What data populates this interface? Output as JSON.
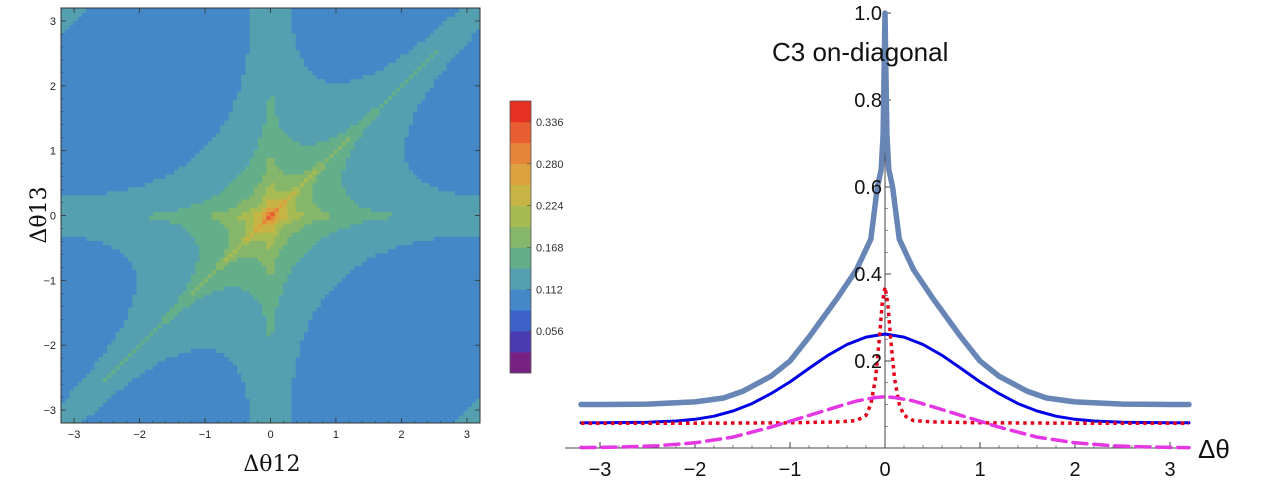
{
  "chart_data": [
    {
      "type": "heatmap",
      "xlabel": "Δθ12",
      "ylabel": "Δθ13",
      "xlim": [
        -3.2,
        3.2
      ],
      "ylim": [
        -3.2,
        3.2
      ],
      "xticks": [
        "-3",
        "-2",
        "-1",
        "0",
        "1",
        "2",
        "3"
      ],
      "yticks": [
        "-3",
        "-2",
        "-1",
        "0",
        "1",
        "2",
        "3"
      ],
      "colorbar": {
        "ticks": [
          "0.056",
          "0.112",
          "0.168",
          "0.224",
          "0.280",
          "0.336"
        ],
        "tick_values": [
          0.056,
          0.112,
          0.168,
          0.224,
          0.28,
          0.336
        ],
        "levels": [
          0.0,
          0.028,
          0.056,
          0.084,
          0.112,
          0.14,
          0.168,
          0.196,
          0.224,
          0.252,
          0.28,
          0.308,
          0.336,
          0.364
        ],
        "colors": [
          "#772183",
          "#4a3bb3",
          "#3d62cc",
          "#4588c8",
          "#54a0b0",
          "#64ae8a",
          "#86b66a",
          "#a8bb52",
          "#c8b445",
          "#dca23e",
          "#e6853a",
          "#e85e32",
          "#e63022"
        ]
      }
    },
    {
      "type": "line",
      "title": "C3 on-diagonal",
      "xlabel": "Δθ",
      "xlim": [
        -3.2,
        3.2
      ],
      "ylim": [
        0,
        1.0
      ],
      "xticks": [
        "−3",
        "−2",
        "−1",
        "0",
        "1",
        "2",
        "3"
      ],
      "yticks": [
        "0.2",
        "0.4",
        "0.6",
        "0.8",
        "1.0"
      ],
      "series": [
        {
          "color": "#6786b5",
          "style": "solid-thick",
          "x": [
            -3.2,
            -3.0,
            -2.5,
            -2.0,
            -1.7,
            -1.5,
            -1.2,
            -1.0,
            -0.8,
            -0.5,
            -0.3,
            -0.15,
            -0.08,
            -0.04,
            -0.02,
            0.0,
            0.02,
            0.04,
            0.08,
            0.15,
            0.3,
            0.5,
            0.8,
            1.0,
            1.2,
            1.5,
            1.7,
            2.0,
            2.5,
            3.0,
            3.2
          ],
          "y": [
            0.1,
            0.1,
            0.101,
            0.106,
            0.115,
            0.13,
            0.165,
            0.2,
            0.255,
            0.345,
            0.41,
            0.48,
            0.6,
            0.64,
            0.72,
            1.0,
            0.72,
            0.64,
            0.6,
            0.48,
            0.41,
            0.345,
            0.255,
            0.2,
            0.165,
            0.13,
            0.115,
            0.106,
            0.101,
            0.1,
            0.1
          ]
        },
        {
          "color": "#0000e8",
          "style": "solid",
          "x": [
            -3.2,
            -3.0,
            -2.5,
            -2.2,
            -2.0,
            -1.8,
            -1.6,
            -1.4,
            -1.2,
            -1.0,
            -0.8,
            -0.6,
            -0.4,
            -0.2,
            0.0,
            0.2,
            0.4,
            0.6,
            0.8,
            1.0,
            1.2,
            1.4,
            1.6,
            1.8,
            2.0,
            2.2,
            2.5,
            3.0,
            3.2
          ],
          "y": [
            0.058,
            0.058,
            0.059,
            0.062,
            0.066,
            0.073,
            0.085,
            0.102,
            0.125,
            0.152,
            0.183,
            0.213,
            0.238,
            0.255,
            0.262,
            0.255,
            0.238,
            0.213,
            0.183,
            0.152,
            0.125,
            0.102,
            0.085,
            0.073,
            0.066,
            0.062,
            0.059,
            0.058,
            0.058
          ]
        },
        {
          "color": "#e8001a",
          "style": "dotted",
          "x": [
            -3.2,
            -2.0,
            -1.0,
            -0.5,
            -0.3,
            -0.2,
            -0.15,
            -0.1,
            -0.06,
            -0.03,
            0.0,
            0.03,
            0.06,
            0.1,
            0.15,
            0.2,
            0.3,
            0.5,
            1.0,
            2.0,
            3.2
          ],
          "y": [
            0.057,
            0.057,
            0.058,
            0.06,
            0.063,
            0.075,
            0.1,
            0.16,
            0.25,
            0.33,
            0.37,
            0.33,
            0.25,
            0.16,
            0.1,
            0.075,
            0.063,
            0.06,
            0.058,
            0.057,
            0.057
          ]
        },
        {
          "color": "#e436e2",
          "style": "dashed",
          "x": [
            -3.2,
            -2.8,
            -2.4,
            -2.0,
            -1.6,
            -1.2,
            -0.8,
            -0.5,
            -0.3,
            -0.1,
            0.0,
            0.1,
            0.3,
            0.5,
            0.8,
            1.2,
            1.6,
            2.0,
            2.4,
            2.8,
            3.2
          ],
          "y": [
            0.001,
            0.002,
            0.005,
            0.012,
            0.025,
            0.048,
            0.075,
            0.095,
            0.108,
            0.116,
            0.118,
            0.116,
            0.108,
            0.095,
            0.075,
            0.048,
            0.025,
            0.012,
            0.005,
            0.002,
            0.001
          ]
        }
      ]
    }
  ]
}
